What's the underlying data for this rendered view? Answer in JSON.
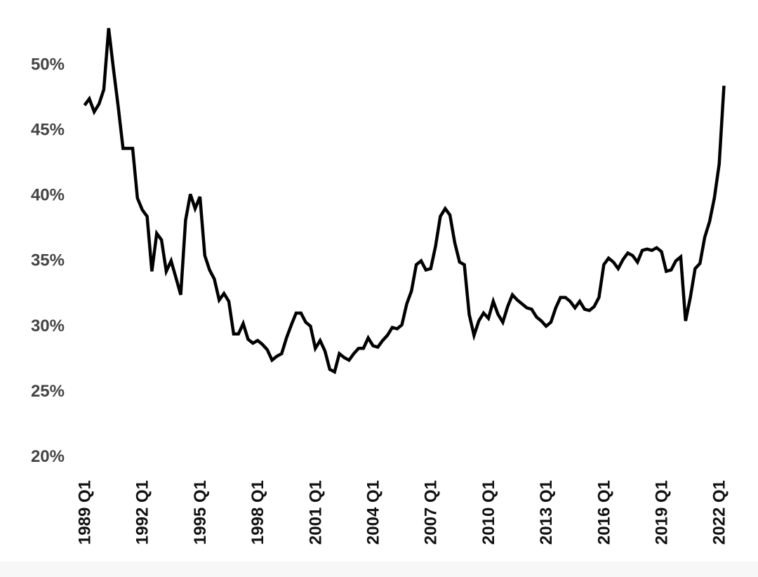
{
  "chart_data": {
    "type": "line",
    "title": "",
    "xlabel": "",
    "ylabel": "",
    "ylim": [
      20,
      53
    ],
    "grid": false,
    "legend": "none",
    "line_color": "#000000",
    "y_ticks": [
      {
        "value": 20,
        "label": "20%"
      },
      {
        "value": 25,
        "label": "25%"
      },
      {
        "value": 30,
        "label": "30%"
      },
      {
        "value": 35,
        "label": "35%"
      },
      {
        "value": 40,
        "label": "40%"
      },
      {
        "value": 45,
        "label": "45%"
      },
      {
        "value": 50,
        "label": "50%"
      }
    ],
    "x_ticks": [
      {
        "label": "1989 Q1",
        "year": 1989,
        "quarter": 1
      },
      {
        "label": "1992 Q1",
        "year": 1992,
        "quarter": 1
      },
      {
        "label": "1995 Q1",
        "year": 1995,
        "quarter": 1
      },
      {
        "label": "1998 Q1",
        "year": 1998,
        "quarter": 1
      },
      {
        "label": "2001 Q1",
        "year": 2001,
        "quarter": 1
      },
      {
        "label": "2004 Q1",
        "year": 2004,
        "quarter": 1
      },
      {
        "label": "2007 Q1",
        "year": 2007,
        "quarter": 1
      },
      {
        "label": "2010 Q1",
        "year": 2010,
        "quarter": 1
      },
      {
        "label": "2013 Q1",
        "year": 2013,
        "quarter": 1
      },
      {
        "label": "2016 Q1",
        "year": 2016,
        "quarter": 1
      },
      {
        "label": "2019 Q1",
        "year": 2019,
        "quarter": 1
      },
      {
        "label": "2022 Q1",
        "year": 2022,
        "quarter": 1
      }
    ],
    "series": [
      {
        "start": "1989 Q1",
        "frequency": "quarterly",
        "values": [
          46.8,
          47.3,
          46.3,
          46.9,
          48.0,
          52.7,
          49.6,
          46.7,
          43.5,
          43.5,
          43.5,
          39.7,
          38.8,
          38.3,
          34.1,
          37.0,
          36.5,
          34.1,
          34.9,
          33.6,
          32.3,
          38.0,
          40.0,
          38.9,
          39.8,
          35.3,
          34.2,
          33.5,
          31.9,
          32.4,
          31.8,
          29.3,
          29.3,
          30.1,
          28.9,
          28.6,
          28.8,
          28.5,
          28.1,
          27.3,
          27.6,
          27.8,
          29.0,
          30.0,
          30.9,
          30.9,
          30.2,
          29.9,
          28.2,
          28.8,
          28.0,
          26.6,
          26.4,
          27.8,
          27.5,
          27.3,
          27.8,
          28.2,
          28.2,
          29.0,
          28.4,
          28.3,
          28.8,
          29.2,
          29.8,
          29.7,
          30.0,
          31.6,
          32.6,
          34.6,
          34.9,
          34.2,
          34.3,
          36.0,
          38.3,
          38.9,
          38.4,
          36.3,
          34.8,
          34.6,
          30.8,
          29.2,
          30.3,
          30.9,
          30.5,
          31.8,
          30.8,
          30.2,
          31.4,
          32.3,
          31.9,
          31.6,
          31.3,
          31.2,
          30.6,
          30.3,
          29.9,
          30.2,
          31.3,
          32.1,
          32.1,
          31.8,
          31.3,
          31.8,
          31.2,
          31.1,
          31.4,
          32.1,
          34.6,
          35.1,
          34.8,
          34.3,
          35.0,
          35.5,
          35.3,
          34.8,
          35.7,
          35.8,
          35.7,
          35.9,
          35.6,
          34.1,
          34.2,
          34.9,
          35.2,
          30.3,
          32.1,
          34.3,
          34.7,
          36.7,
          37.9,
          39.7,
          42.3,
          48.3
        ]
      }
    ]
  }
}
